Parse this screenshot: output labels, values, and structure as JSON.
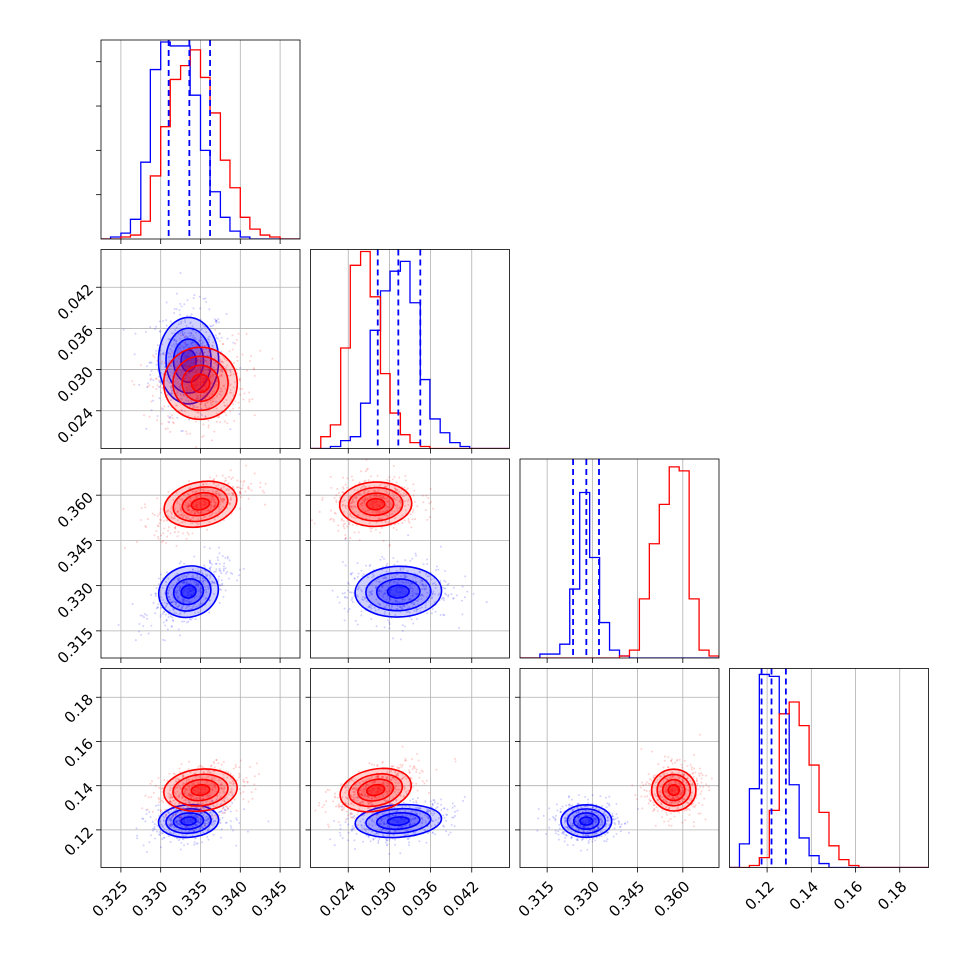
{
  "chart_data": {
    "type": "corner",
    "grid": true,
    "series": [
      {
        "color": "#0000ff",
        "means": [
          0.3335,
          0.0313,
          0.328,
          0.124
        ],
        "sigmas": [
          0.0018,
          0.003,
          0.004,
          0.0035
        ],
        "quantiles": [
          [
            0.331,
            0.3336,
            0.3362
          ],
          [
            0.0283,
            0.0313,
            0.0345
          ],
          [
            0.3236,
            0.328,
            0.3322
          ],
          [
            0.1175,
            0.122,
            0.1285
          ]
        ]
      },
      {
        "color": "#ff0000",
        "means": [
          0.335,
          0.028,
          0.357,
          0.138
        ],
        "sigmas": [
          0.0022,
          0.0025,
          0.0035,
          0.0045
        ]
      }
    ],
    "panels": {
      "hist": [
        {
          "xlim": [
            0.3225,
            0.3475
          ],
          "edges": [
            0.3225,
            0.3237,
            0.325,
            0.3262,
            0.3275,
            0.3287,
            0.33,
            0.3312,
            0.3325,
            0.3337,
            0.335,
            0.3362,
            0.3375,
            0.3387,
            0.34,
            0.3412,
            0.3425,
            0.3437,
            0.345,
            0.3462,
            0.3475
          ],
          "counts": {
            "blue": [
              0.0,
              0.01,
              0.03,
              0.1,
              0.39,
              0.86,
              1.0,
              0.98,
              0.98,
              0.73,
              0.45,
              0.24,
              0.11,
              0.04,
              0.01,
              0.0,
              0.0,
              0.0,
              0.0,
              0.0
            ],
            "red": [
              0.0,
              0.0,
              0.01,
              0.02,
              0.09,
              0.32,
              0.57,
              0.81,
              0.88,
              0.96,
              0.82,
              0.64,
              0.4,
              0.26,
              0.11,
              0.05,
              0.02,
              0.01,
              0.0,
              0.0
            ]
          }
        },
        {
          "xlim": [
            0.0185,
            0.0475
          ],
          "edges": [
            0.0185,
            0.02,
            0.0214,
            0.0229,
            0.0243,
            0.0258,
            0.0272,
            0.0287,
            0.0301,
            0.0316,
            0.033,
            0.0345,
            0.0359,
            0.0374,
            0.0388,
            0.0403,
            0.0417,
            0.0432,
            0.0446,
            0.0461,
            0.0475
          ],
          "counts": {
            "blue": [
              0.0,
              0.0,
              0.01,
              0.04,
              0.06,
              0.23,
              0.6,
              0.8,
              0.9,
              0.95,
              0.74,
              0.35,
              0.15,
              0.08,
              0.03,
              0.01,
              0.0,
              0.0,
              0.0,
              0.0
            ],
            "red": [
              0.0,
              0.06,
              0.12,
              0.51,
              0.93,
              1.0,
              0.77,
              0.38,
              0.18,
              0.07,
              0.03,
              0.01,
              0.0,
              0.0,
              0.0,
              0.0,
              0.0,
              0.0,
              0.0,
              0.0
            ]
          }
        },
        {
          "xlim": [
            0.306,
            0.372
          ],
          "edges": [
            0.306,
            0.3093,
            0.3126,
            0.3159,
            0.3192,
            0.3225,
            0.3258,
            0.3291,
            0.3324,
            0.3357,
            0.339,
            0.3423,
            0.3456,
            0.3489,
            0.3522,
            0.3555,
            0.3588,
            0.3621,
            0.3654,
            0.3687,
            0.372
          ],
          "counts": {
            "blue": [
              0.0,
              0.0,
              0.02,
              0.02,
              0.07,
              0.35,
              0.84,
              0.51,
              0.18,
              0.04,
              0.01,
              0.0,
              0.0,
              0.0,
              0.0,
              0.0,
              0.0,
              0.0,
              0.0,
              0.0
            ],
            "red": [
              0.0,
              0.0,
              0.0,
              0.0,
              0.0,
              0.0,
              0.0,
              0.0,
              0.0,
              0.0,
              0.01,
              0.04,
              0.3,
              0.58,
              0.78,
              0.97,
              0.95,
              0.3,
              0.04,
              0.01
            ]
          }
        },
        {
          "xlim": [
            0.103,
            0.193
          ],
          "edges": [
            0.103,
            0.1075,
            0.112,
            0.1165,
            0.121,
            0.1255,
            0.13,
            0.1345,
            0.139,
            0.1435,
            0.148,
            0.1525,
            0.157,
            0.1615,
            0.166,
            0.1705,
            0.175,
            0.1795,
            0.184,
            0.1885,
            0.193
          ],
          "counts": {
            "blue": [
              0.0,
              0.12,
              0.4,
              0.98,
              0.97,
              0.78,
              0.42,
              0.15,
              0.06,
              0.02,
              0.0,
              0.0,
              0.0,
              0.0,
              0.0,
              0.0,
              0.0,
              0.0,
              0.0,
              0.0
            ],
            "red": [
              0.0,
              0.0,
              0.01,
              0.05,
              0.29,
              0.78,
              0.84,
              0.72,
              0.52,
              0.28,
              0.11,
              0.04,
              0.01,
              0.0,
              0.0,
              0.0,
              0.0,
              0.0,
              0.0,
              0.0
            ]
          }
        }
      ],
      "ylims": [
        null,
        [
          0.0185,
          0.0475
        ],
        [
          0.306,
          0.372
        ],
        [
          0.103,
          0.193
        ]
      ]
    },
    "ticks": [
      {
        "values": [
          0.325,
          0.33,
          0.335,
          0.34,
          0.345
        ],
        "labels": [
          "0.325",
          "0.330",
          "0.335",
          "0.340",
          "0.345"
        ]
      },
      {
        "values": [
          0.024,
          0.03,
          0.036,
          0.042
        ],
        "labels": [
          "0.024",
          "0.030",
          "0.036",
          "0.042"
        ]
      },
      {
        "values": [
          0.315,
          0.33,
          0.345,
          0.36
        ],
        "labels": [
          "0.315",
          "0.330",
          "0.345",
          "0.360"
        ]
      },
      {
        "values": [
          0.12,
          0.14,
          0.16,
          0.18
        ],
        "labels": [
          "0.12",
          "0.14",
          "0.16",
          "0.18"
        ]
      }
    ]
  }
}
